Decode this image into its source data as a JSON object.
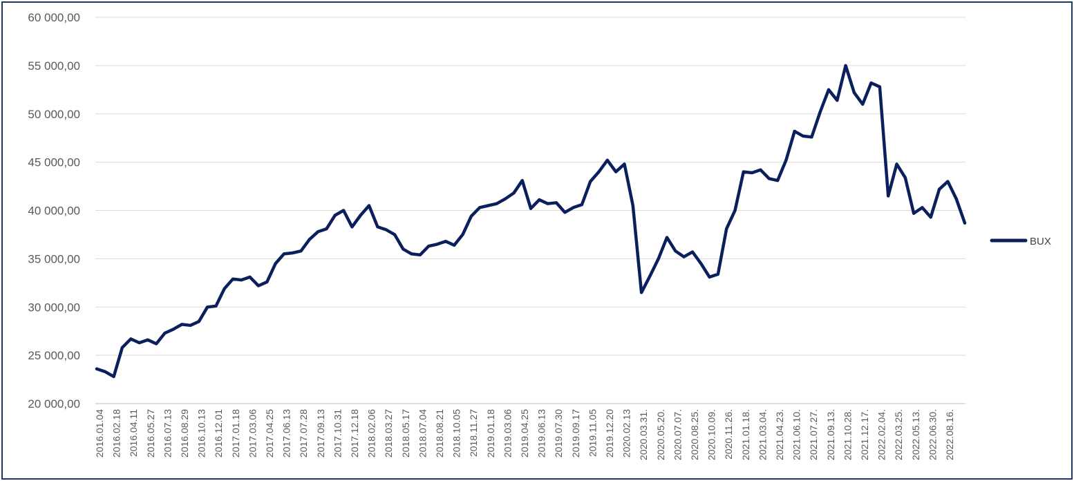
{
  "chart_data": {
    "type": "line",
    "title": "",
    "xlabel": "",
    "ylabel": "",
    "ylim": [
      20000,
      60000
    ],
    "y_ticks": [
      20000,
      25000,
      30000,
      35000,
      40000,
      45000,
      50000,
      55000,
      60000
    ],
    "y_tick_labels": [
      "20 000,00",
      "25 000,00",
      "30 000,00",
      "35 000,00",
      "40 000,00",
      "45 000,00",
      "50 000,00",
      "55 000,00",
      "60 000,00"
    ],
    "x_tick_labels": [
      "2016.01.04",
      "2016.02.18",
      "2016.04.11",
      "2016.05.27",
      "2016.07.13",
      "2016.08.29",
      "2016.10.13",
      "2016.12.01",
      "2017.01.18",
      "2017.03.06",
      "2017.04.25",
      "2017.06.13",
      "2017.07.28",
      "2017.09.13",
      "2017.10.31",
      "2017.12.18",
      "2018.02.06",
      "2018.03.27",
      "2018.05.17",
      "2018.07.04",
      "2018.08.21",
      "2018.10.05",
      "2018.11.27",
      "2019.01.18",
      "2019.03.06",
      "2019.04.25",
      "2019.06.13",
      "2019.07.30",
      "2019.09.17",
      "2019.11.05",
      "2019.12.20",
      "2020.02.13",
      "2020.03.31.",
      "2020.05.20.",
      "2020.07.07.",
      "2020.08.25.",
      "2020.10.09.",
      "2020.11.26.",
      "2021.01.18.",
      "2021.03.04.",
      "2021.04.23.",
      "2021.06.10.",
      "2021.07.27.",
      "2021.09.13.",
      "2021.10.28.",
      "2021.12.17.",
      "2022.02.04.",
      "2022.03.25.",
      "2022.05.13.",
      "2022.06.30.",
      "2022.08.16."
    ],
    "grid": true,
    "legend_position": "right",
    "series": [
      {
        "name": "BUX",
        "color": "#0b1f5c",
        "x": [
          "2016.01.04",
          "2016.01.25",
          "2016.02.18",
          "2016.03.14",
          "2016.04.11",
          "2016.05.02",
          "2016.05.27",
          "2016.06.20",
          "2016.07.13",
          "2016.08.05",
          "2016.08.29",
          "2016.09.20",
          "2016.10.13",
          "2016.11.07",
          "2016.12.01",
          "2016.12.23",
          "2017.01.18",
          "2017.02.10",
          "2017.03.06",
          "2017.03.30",
          "2017.04.25",
          "2017.05.19",
          "2017.06.13",
          "2017.07.05",
          "2017.07.28",
          "2017.08.22",
          "2017.09.13",
          "2017.10.06",
          "2017.10.31",
          "2017.11.24",
          "2017.12.18",
          "2018.01.15",
          "2018.02.06",
          "2018.03.01",
          "2018.03.27",
          "2018.04.20",
          "2018.05.17",
          "2018.06.08",
          "2018.07.04",
          "2018.07.27",
          "2018.08.21",
          "2018.09.12",
          "2018.10.05",
          "2018.10.31",
          "2018.11.27",
          "2018.12.20",
          "2019.01.18",
          "2019.02.11",
          "2019.03.06",
          "2019.04.01",
          "2019.04.25",
          "2019.05.20",
          "2019.06.13",
          "2019.07.05",
          "2019.07.30",
          "2019.08.23",
          "2019.09.17",
          "2019.10.11",
          "2019.11.05",
          "2019.11.28",
          "2019.12.20",
          "2020.01.20",
          "2020.02.13",
          "2020.03.06",
          "2020.03.31",
          "2020.04.24",
          "2020.05.20",
          "2020.06.12",
          "2020.07.07",
          "2020.07.30",
          "2020.08.25",
          "2020.09.16",
          "2020.10.09",
          "2020.11.03",
          "2020.11.26",
          "2020.12.18",
          "2021.01.18",
          "2021.02.10",
          "2021.03.04",
          "2021.03.30",
          "2021.04.23",
          "2021.05.17",
          "2021.06.10",
          "2021.07.02",
          "2021.07.27",
          "2021.08.19",
          "2021.09.13",
          "2021.10.05",
          "2021.10.28",
          "2021.11.22",
          "2021.12.17",
          "2022.01.12",
          "2022.02.04",
          "2022.03.01",
          "2022.03.25",
          "2022.04.20",
          "2022.05.13",
          "2022.06.07",
          "2022.06.30",
          "2022.07.25",
          "2022.08.16",
          "2022.09.08",
          "2022.09.30"
        ],
        "values": [
          23600,
          23300,
          22800,
          25800,
          26700,
          26300,
          26600,
          26200,
          27300,
          27700,
          28200,
          28100,
          28500,
          30000,
          30100,
          31900,
          32900,
          32800,
          33100,
          32200,
          32600,
          34500,
          35500,
          35600,
          35800,
          37000,
          37800,
          38100,
          39500,
          40000,
          38300,
          39500,
          40500,
          38300,
          38000,
          37500,
          36000,
          35500,
          35400,
          36300,
          36500,
          36800,
          36400,
          37500,
          39400,
          40300,
          40500,
          40700,
          41200,
          41800,
          43100,
          40200,
          41100,
          40700,
          40800,
          39800,
          40300,
          40600,
          43000,
          44000,
          45200,
          44000,
          44800,
          40500,
          31500,
          33200,
          35000,
          37200,
          35800,
          35200,
          35700,
          34500,
          33100,
          33400,
          38100,
          40000,
          44000,
          43900,
          44200,
          43300,
          43100,
          45200,
          48200,
          47700,
          47600,
          50200,
          52500,
          51400,
          55000,
          52200,
          51000,
          53200,
          52800,
          41500,
          44800,
          43400,
          39700,
          40300,
          39300,
          42200,
          43000,
          41200,
          38700
        ]
      }
    ]
  }
}
